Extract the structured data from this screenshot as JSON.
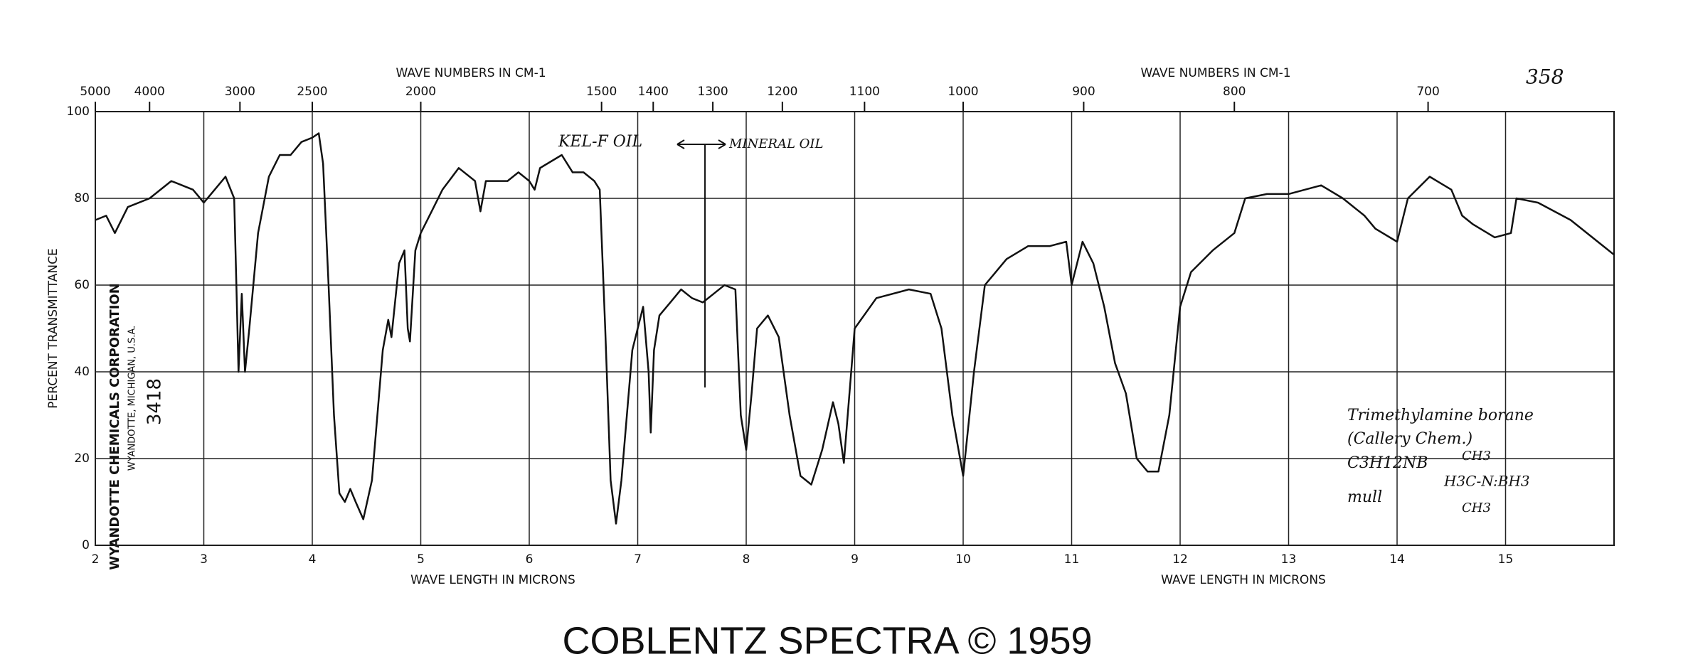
{
  "chart_data": {
    "type": "line",
    "catalog_number": "358",
    "top_axis_label": [
      "WAVE NUMBERS IN CM-1",
      "WAVE NUMBERS IN CM-1"
    ],
    "xlabel": [
      "WAVE LENGTH IN MICRONS",
      "WAVE LENGTH IN MICRONS"
    ],
    "ylabel": "PERCENT TRANSMITTANCE",
    "source": [
      "WYANDOTTE CHEMICALS CORPORATION",
      "WYANDOTTE, MICHIGAN, U.S.A.",
      "3418"
    ],
    "annotations": [
      "KEL-F OIL",
      "MINERAL OIL"
    ],
    "sample": [
      "Trimethylamine borane",
      "(Callery Chem.)",
      "C3H12NB",
      "mull",
      "CH3",
      "H3C-N:BH3",
      "CH3"
    ],
    "footer": "COBLENTZ SPECTRA © 1959",
    "xlim": [
      2,
      16
    ],
    "ylim": [
      0,
      100
    ],
    "xticks": [
      2,
      3,
      4,
      5,
      6,
      7,
      8,
      9,
      10,
      11,
      12,
      13,
      14,
      15
    ],
    "yticks": [
      0,
      20,
      40,
      60,
      80,
      100
    ],
    "x2ticks": [
      5000,
      4000,
      3000,
      2500,
      2000,
      1500,
      1400,
      1300,
      1200,
      1100,
      1000,
      900,
      800,
      700
    ],
    "grid": true,
    "series": [
      {
        "color": "#111111",
        "x": [
          2.0,
          2.1,
          2.18,
          2.3,
          2.5,
          2.7,
          2.9,
          3.0,
          3.1,
          3.2,
          3.28,
          3.3,
          3.32,
          3.35,
          3.38,
          3.42,
          3.5,
          3.6,
          3.7,
          3.8,
          3.9,
          4.0,
          4.06,
          4.1,
          4.15,
          4.2,
          4.25,
          4.3,
          4.35,
          4.4,
          4.47,
          4.55,
          4.65,
          4.7,
          4.73,
          4.8,
          4.85,
          4.88,
          4.9,
          4.95,
          5.0,
          5.1,
          5.2,
          5.35,
          5.5,
          5.55,
          5.6,
          5.8,
          5.9,
          6.0,
          6.05,
          6.1,
          6.3,
          6.4,
          6.5,
          6.6,
          6.65,
          6.7,
          6.75,
          6.8,
          6.85,
          6.95,
          7.05,
          7.1,
          7.12,
          7.15,
          7.2,
          7.3,
          7.4,
          7.5,
          7.6,
          7.7,
          7.8,
          7.9,
          7.95,
          8.0,
          8.05,
          8.1,
          8.2,
          8.3,
          8.4,
          8.5,
          8.6,
          8.7,
          8.8,
          8.85,
          8.9,
          9.0,
          9.2,
          9.5,
          9.7,
          9.8,
          9.9,
          10.0,
          10.1,
          10.2,
          10.4,
          10.6,
          10.8,
          10.95,
          11.0,
          11.1,
          11.2,
          11.3,
          11.4,
          11.5,
          11.6,
          11.7,
          11.8,
          11.9,
          12.0,
          12.1,
          12.3,
          12.5,
          12.6,
          12.8,
          13.0,
          13.3,
          13.5,
          13.7,
          13.8,
          14.0,
          14.1,
          14.3,
          14.5,
          14.6,
          14.7,
          14.9,
          15.05,
          15.1,
          15.3,
          15.6,
          15.9,
          16.0
        ],
        "values": [
          75,
          76,
          72,
          78,
          80,
          84,
          82,
          79,
          82,
          85,
          80,
          60,
          40,
          58,
          40,
          50,
          72,
          85,
          90,
          90,
          93,
          94,
          95,
          88,
          60,
          30,
          12,
          10,
          13,
          10,
          6,
          15,
          45,
          52,
          48,
          65,
          68,
          50,
          47,
          68,
          72,
          77,
          82,
          87,
          84,
          77,
          84,
          84,
          86,
          84,
          82,
          87,
          90,
          86,
          86,
          84,
          82,
          50,
          15,
          5,
          15,
          45,
          55,
          40,
          26,
          45,
          53,
          56,
          59,
          57,
          56,
          58,
          60,
          59,
          30,
          22,
          35,
          50,
          53,
          48,
          30,
          16,
          14,
          22,
          33,
          28,
          19,
          50,
          57,
          59,
          58,
          50,
          30,
          16,
          40,
          60,
          66,
          69,
          69,
          70,
          60,
          70,
          65,
          55,
          42,
          35,
          20,
          17,
          17,
          30,
          55,
          63,
          68,
          72,
          80,
          81,
          81,
          83,
          80,
          76,
          73,
          70,
          80,
          85,
          82,
          76,
          74,
          71,
          72,
          80,
          79,
          75,
          69,
          67
        ]
      }
    ]
  }
}
